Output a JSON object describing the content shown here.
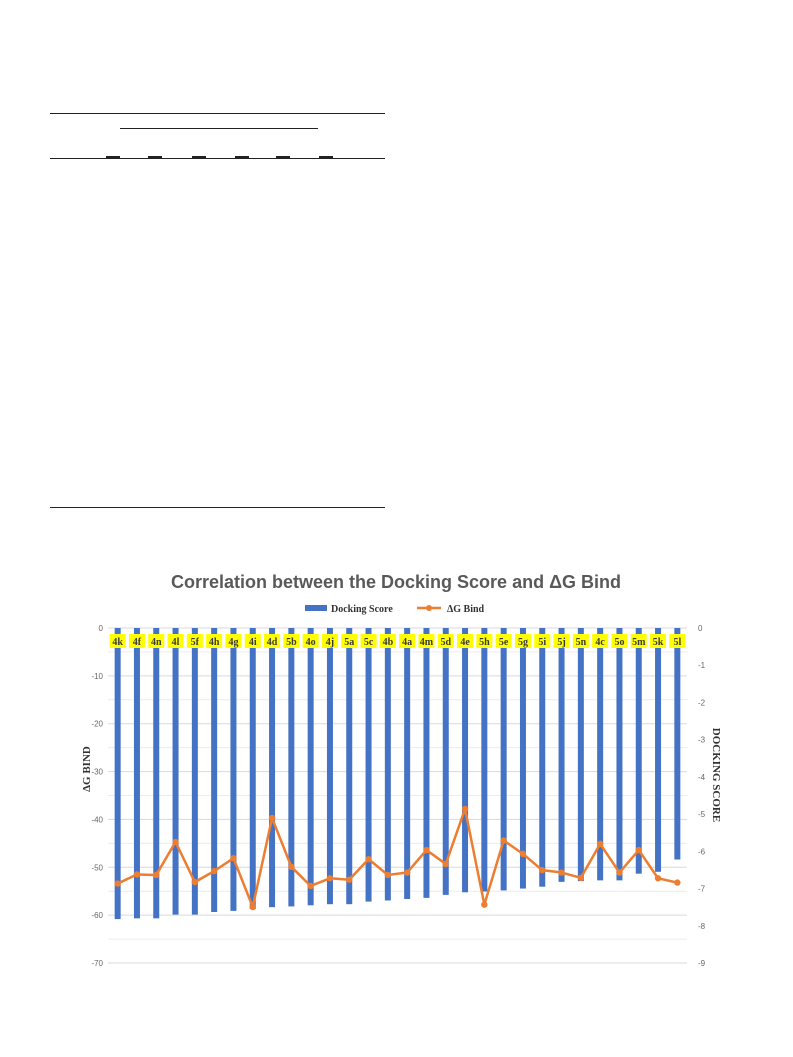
{
  "chart_data": {
    "type": "bar",
    "title": "Correlation between the Docking Score and ΔG Bind",
    "categories": [
      "4k",
      "4f",
      "4n",
      "4l",
      "5f",
      "4h",
      "4g",
      "4i",
      "4d",
      "5b",
      "4o",
      "4j",
      "5a",
      "5c",
      "4b",
      "4a",
      "4m",
      "5d",
      "4e",
      "5h",
      "5e",
      "5g",
      "5i",
      "5j",
      "5n",
      "4c",
      "5o",
      "5m",
      "5k",
      "5l"
    ],
    "series": [
      {
        "name": "Docking Score",
        "axis": "right",
        "type": "bar",
        "color": "#4472C4",
        "values": [
          -7.82,
          -7.8,
          -7.8,
          -7.7,
          -7.7,
          -7.63,
          -7.6,
          -7.55,
          -7.5,
          -7.48,
          -7.45,
          -7.42,
          -7.42,
          -7.35,
          -7.32,
          -7.28,
          -7.25,
          -7.17,
          -7.1,
          -7.08,
          -7.05,
          -7.0,
          -6.95,
          -6.82,
          -6.8,
          -6.78,
          -6.78,
          -6.6,
          -6.55,
          -6.22
        ]
      },
      {
        "name": "ΔG Bind",
        "axis": "left",
        "type": "line",
        "color": "#ED7D31",
        "values": [
          -53.4,
          -51.5,
          -51.6,
          -44.7,
          -53.1,
          -50.8,
          -48.1,
          -58.3,
          -39.7,
          -49.9,
          -53.9,
          -52.3,
          -52.6,
          -48.3,
          -51.6,
          -51.1,
          -46.4,
          -49.3,
          -37.8,
          -57.8,
          -44.4,
          -47.2,
          -50.6,
          -51.1,
          -52.2,
          -45.1,
          -51.1,
          -46.4,
          -52.3,
          -53.2
        ]
      }
    ],
    "ylabel": "ΔG BIND",
    "y2label": "DOCKING SCORE",
    "ylim": [
      -70,
      0
    ],
    "y2lim": [
      -9,
      0
    ],
    "yticks": [
      "0",
      "-10",
      "-20",
      "-30",
      "-40",
      "-50",
      "-60",
      "-70"
    ],
    "y2ticks": [
      "0",
      "-1",
      "-2",
      "-3",
      "-4",
      "-5",
      "-6",
      "-7",
      "-8",
      "-9"
    ],
    "grid": true,
    "legend_position": "top",
    "label_highlight_color": "#FFFF00"
  }
}
